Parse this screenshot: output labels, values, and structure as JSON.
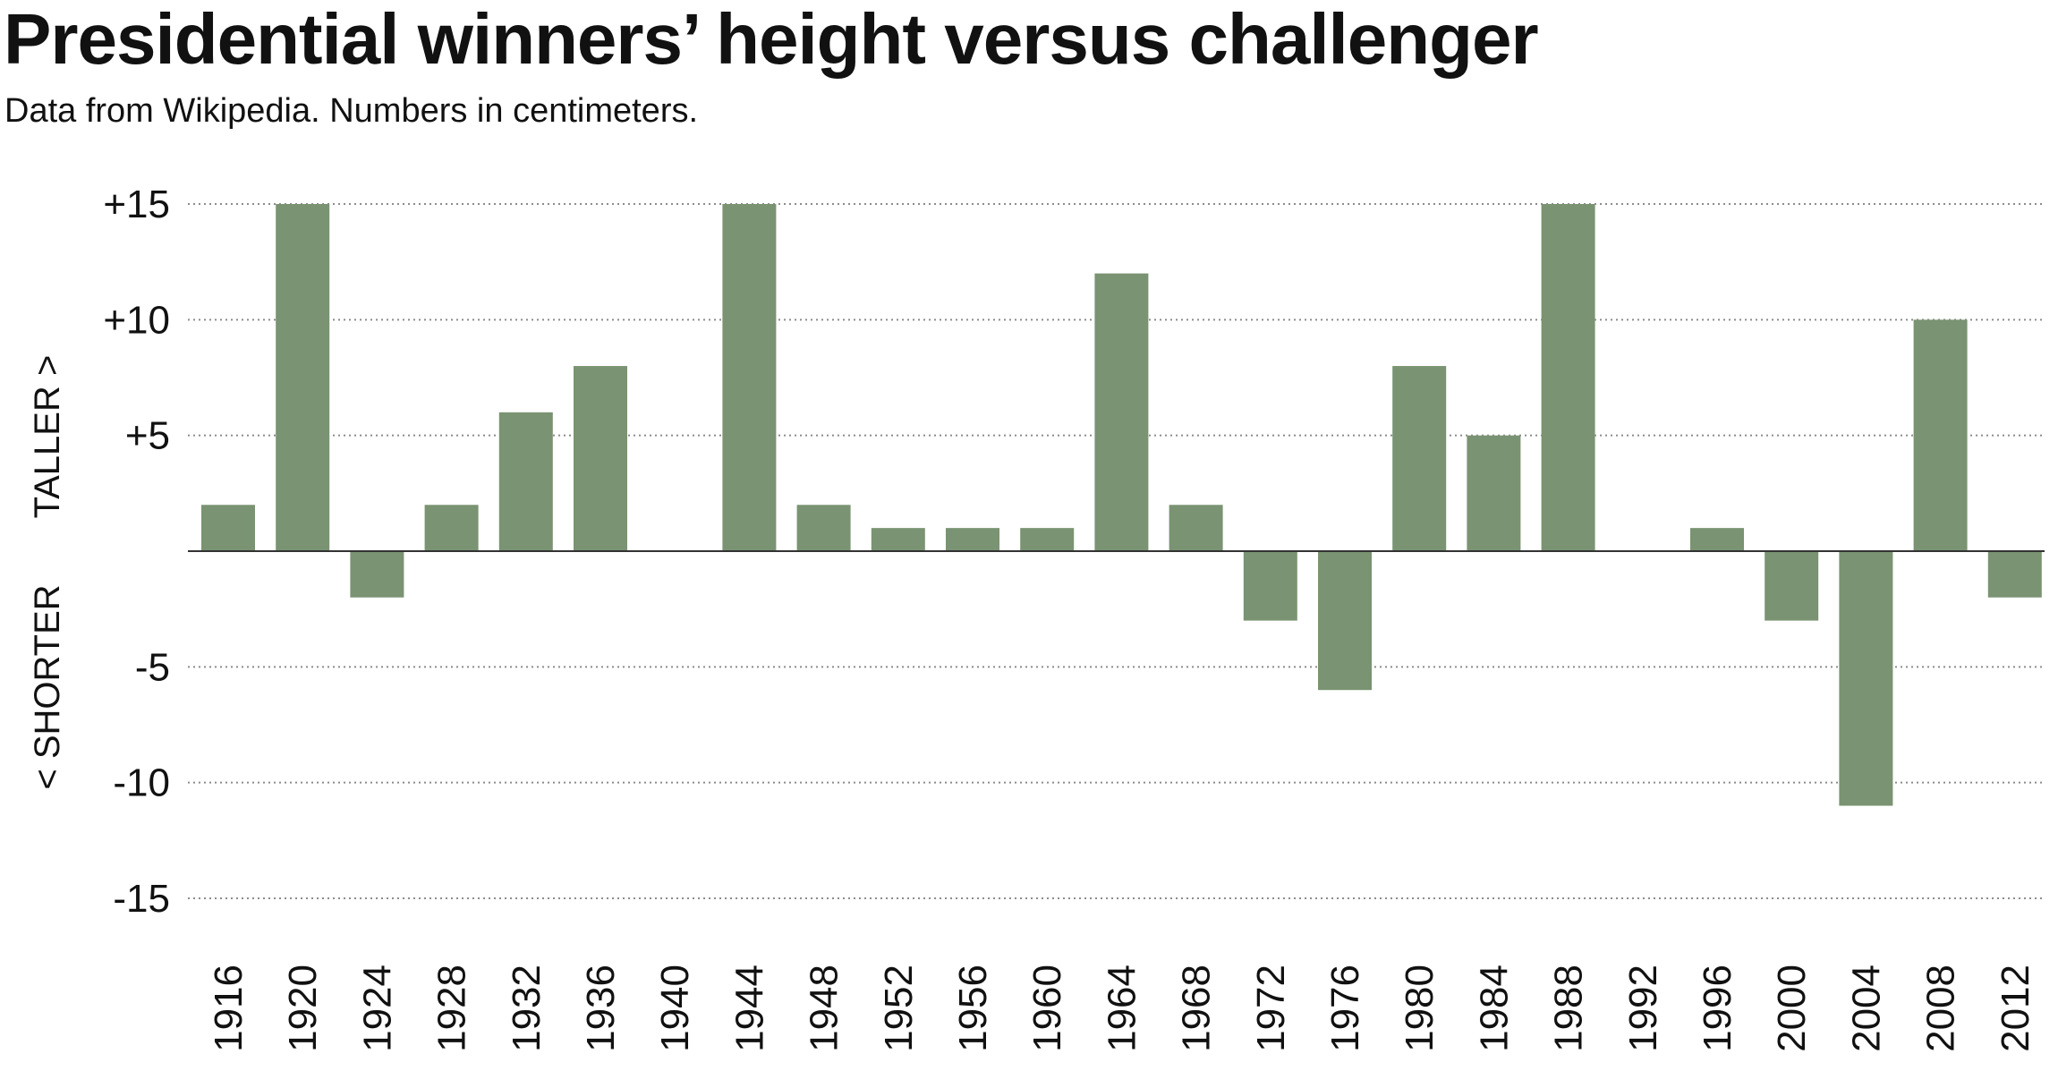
{
  "chart_data": {
    "type": "bar",
    "title": "Presidential winners’ height versus challenger",
    "subtitle": "Data from Wikipedia. Numbers in centimeters.",
    "xlabel": "",
    "ylabel_upper": "TALLER >",
    "ylabel_lower": "< SHORTER",
    "ylim": [
      -15,
      15
    ],
    "yticks": [
      15,
      10,
      5,
      -5,
      -10,
      -15
    ],
    "ytick_labels": [
      "+15",
      "+10",
      "+5",
      "-5",
      "-10",
      "-15"
    ],
    "grid": true,
    "categories": [
      "1916",
      "1920",
      "1924",
      "1928",
      "1932",
      "1936",
      "1940",
      "1944",
      "1948",
      "1952",
      "1956",
      "1960",
      "1964",
      "1968",
      "1972",
      "1976",
      "1980",
      "1984",
      "1988",
      "1992",
      "1996",
      "2000",
      "2004",
      "2008",
      "2012"
    ],
    "values": [
      2,
      15,
      -2,
      2,
      6,
      8,
      0,
      15,
      2,
      1,
      1,
      1,
      12,
      2,
      -3,
      -6,
      8,
      5,
      15,
      0,
      1,
      -3,
      -11,
      10,
      -2
    ],
    "bar_color": "#7a9372",
    "grid_color": "#8c8c8c",
    "zero_line_color": "#333333"
  }
}
